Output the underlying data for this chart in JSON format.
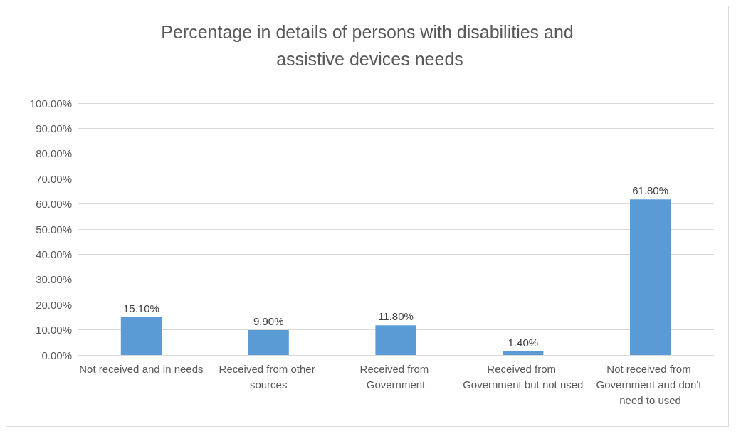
{
  "chart_data": {
    "type": "bar",
    "title": "Percentage in details of persons with disabilities and assistive devices needs",
    "categories": [
      "Not received and in needs",
      "Received from other sources",
      "Received from Government",
      "Received from Government but not used",
      "Not received from Government and don't need to used"
    ],
    "values": [
      15.1,
      9.9,
      11.8,
      1.4,
      61.8
    ],
    "value_labels": [
      "15.10%",
      "9.90%",
      "11.80%",
      "1.40%",
      "61.80%"
    ],
    "color": "#5b9bd5",
    "ylim": [
      0,
      100
    ],
    "yticks": [
      {
        "value": 0,
        "label": "0.00%"
      },
      {
        "value": 10,
        "label": "10.00%"
      },
      {
        "value": 20,
        "label": "20.00%"
      },
      {
        "value": 30,
        "label": "30.00%"
      },
      {
        "value": 40,
        "label": "40.00%"
      },
      {
        "value": 50,
        "label": "50.00%"
      },
      {
        "value": 60,
        "label": "60.00%"
      },
      {
        "value": 70,
        "label": "70.00%"
      },
      {
        "value": 80,
        "label": "80.00%"
      },
      {
        "value": 90,
        "label": "90.00%"
      },
      {
        "value": 100,
        "label": "100.00%"
      }
    ],
    "grid": "y"
  }
}
